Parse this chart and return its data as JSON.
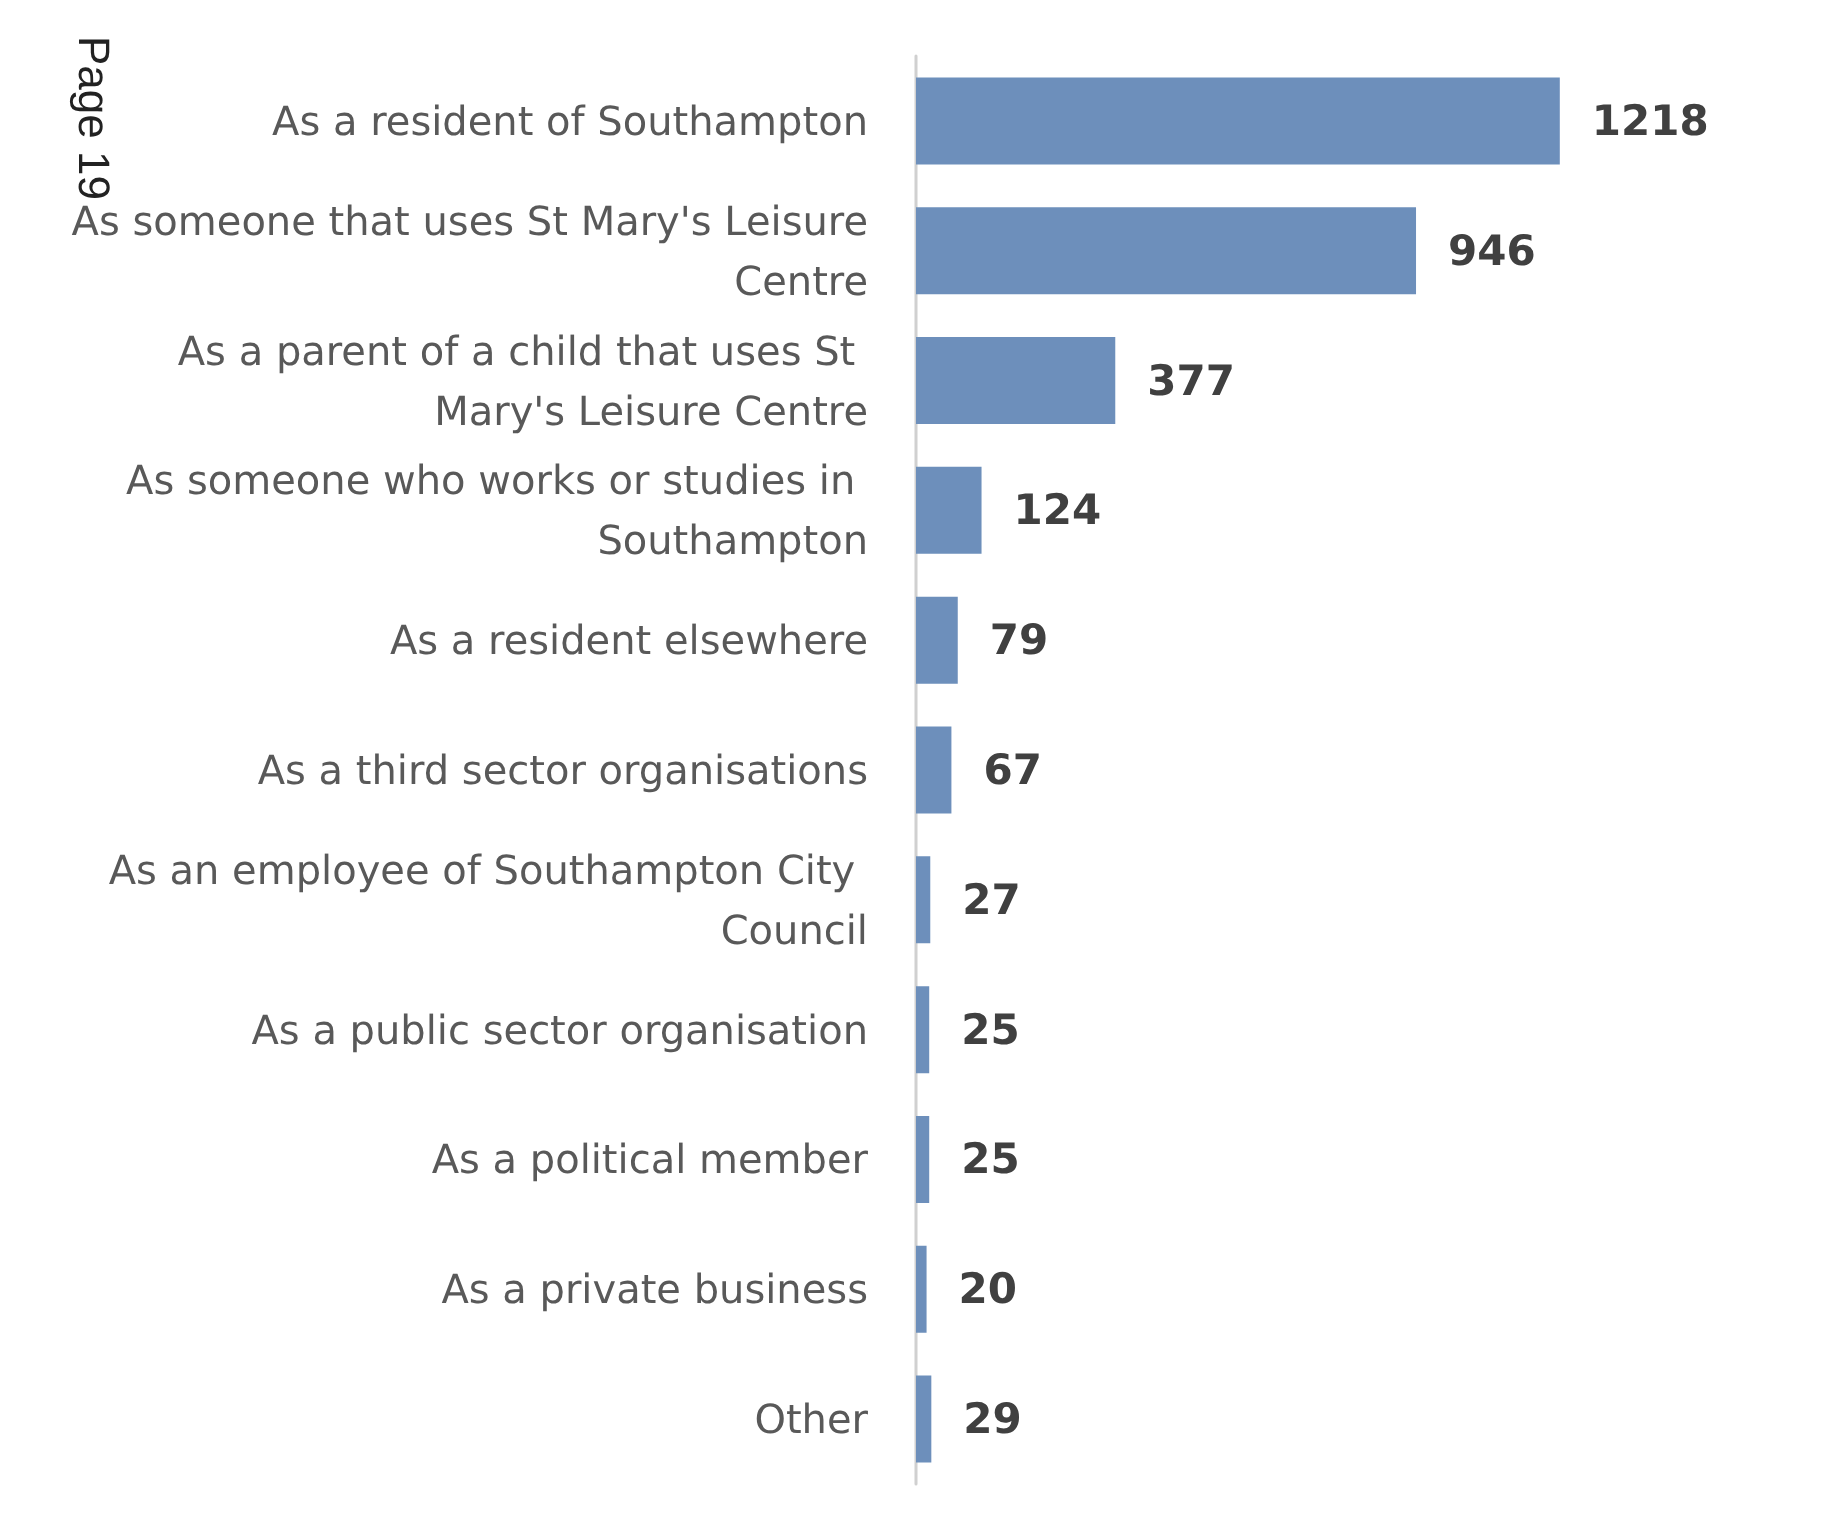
{
  "chart_data": {
    "type": "bar",
    "orientation": "horizontal",
    "categories": [
      "As a resident of Southampton",
      "As someone that uses St Mary's Leisure Centre",
      "As a parent of a child that uses St Mary's Leisure Centre",
      "As someone who works or studies in Southampton",
      "As a resident elsewhere",
      "As a third sector organisations",
      "As an employee of Southampton City Council",
      "As a public sector organisation",
      "As a political member",
      "As a private business",
      "Other"
    ],
    "values": [
      1218,
      946,
      377,
      124,
      79,
      67,
      27,
      25,
      25,
      20,
      29
    ],
    "color": "#6d8fbb",
    "data_labels": true,
    "tick_labels": "y",
    "annotations": [
      "Page 19"
    ]
  }
}
